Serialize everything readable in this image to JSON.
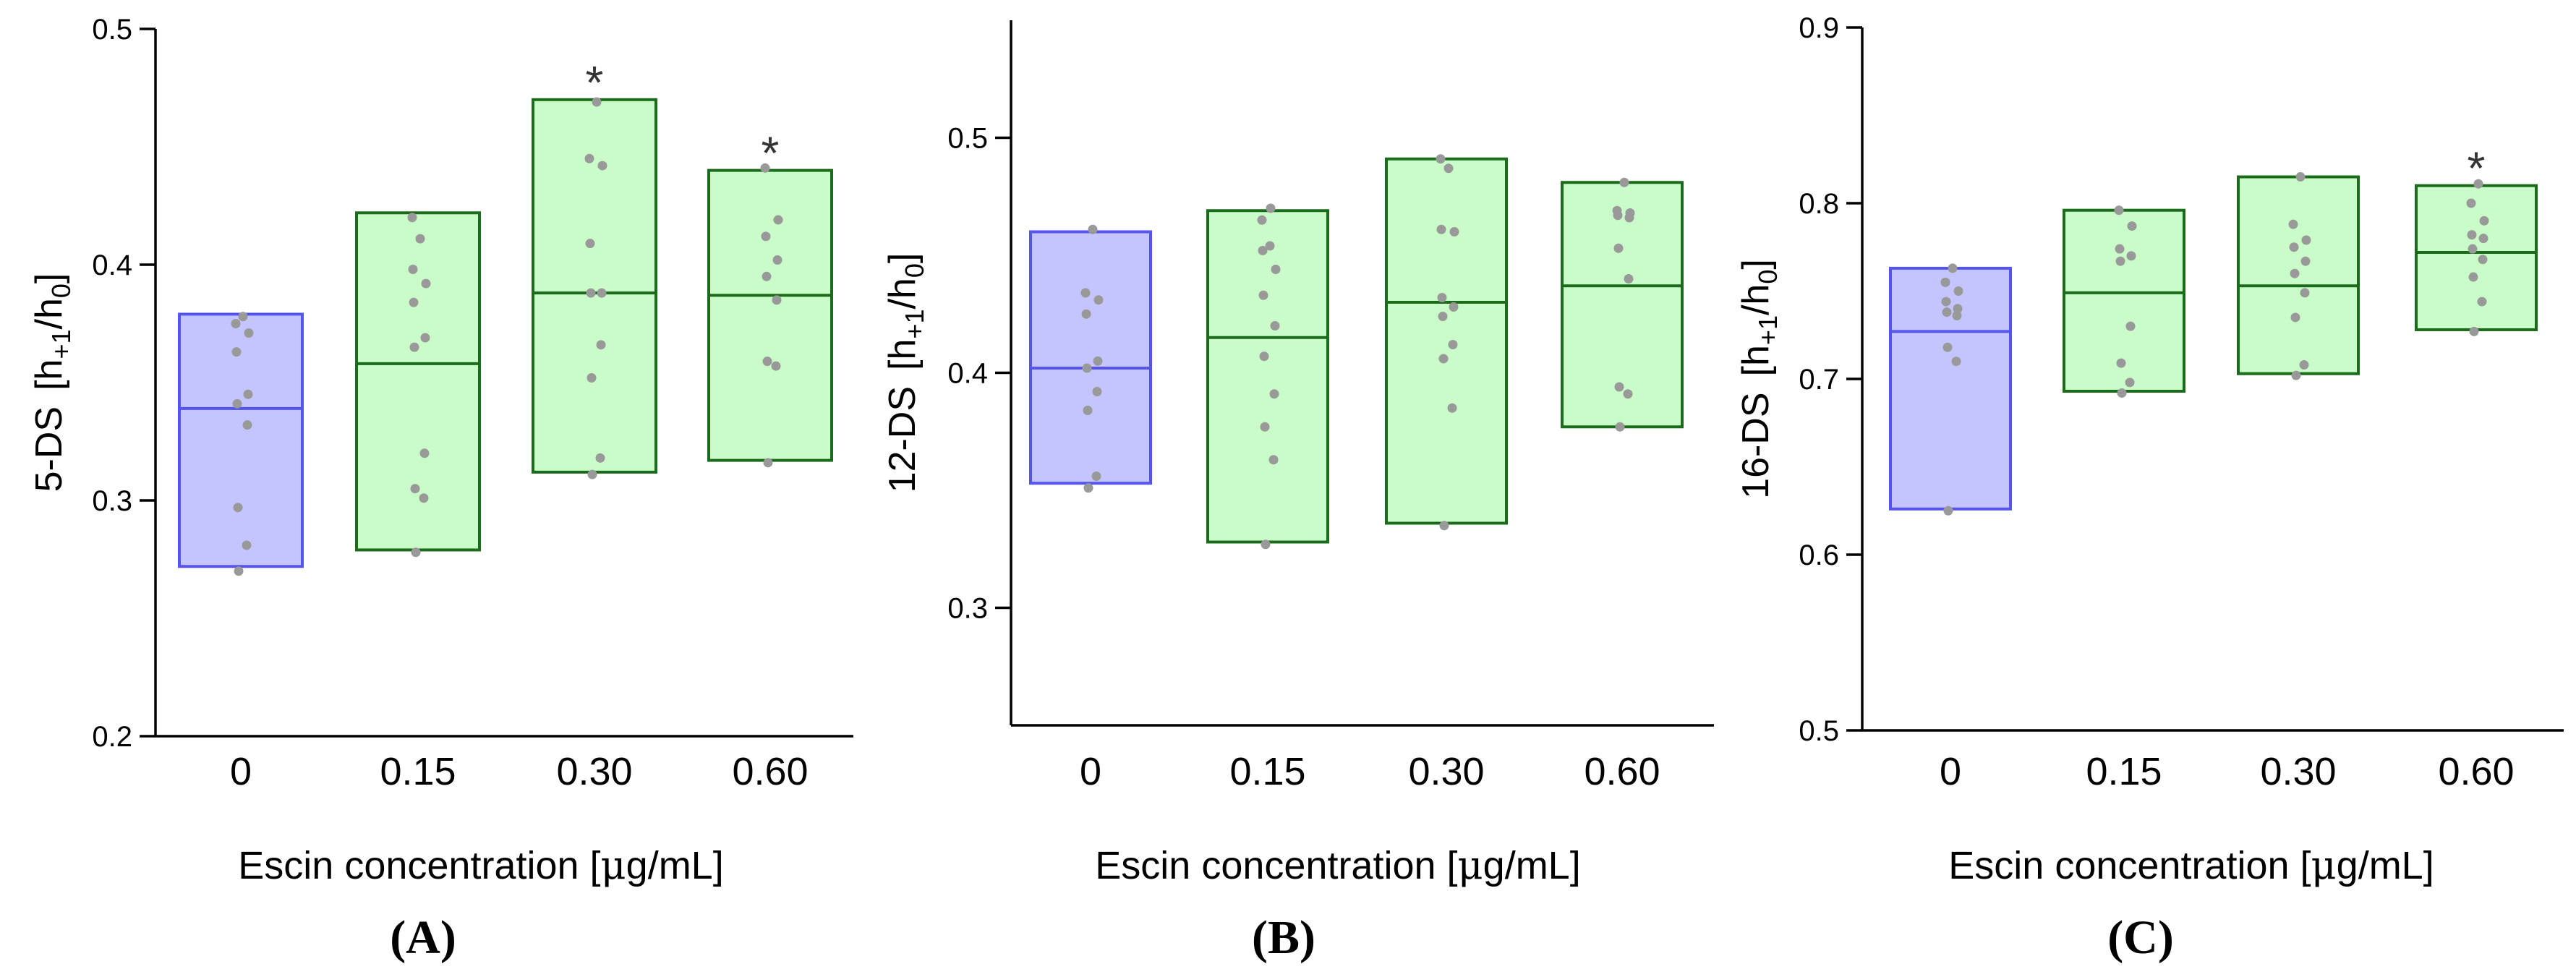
{
  "colors": {
    "control_fill": "#c4c4ff",
    "control_stroke": "#5555ee",
    "treated_fill": "#c9fcc9",
    "treated_stroke": "#1a6b1a",
    "point": "#999999"
  },
  "chart_data": [
    {
      "type": "box",
      "panel_label": "(A)",
      "ylabel": "5-DS   [h+1/h0]",
      "ylabel_prefix": "5-DS",
      "ylabel_h": "h",
      "ylabel_sub1": "+1",
      "ylabel_slash": "/h",
      "ylabel_sub2": "0",
      "xlabel_pre": "Escin concentration [",
      "xlabel_mu": "μ",
      "xlabel_post": "g/mL]",
      "ylim": [
        0.2,
        0.5
      ],
      "yticks": [
        "0.2",
        "0.3",
        "0.4",
        "0.5"
      ],
      "yticks_values": [
        0.2,
        0.3,
        0.4,
        0.5
      ],
      "categories": [
        "0",
        "0.15",
        "0.30",
        "0.60"
      ],
      "boxes": [
        {
          "low": 0.272,
          "high": 0.379,
          "median": 0.339,
          "control": true,
          "star": "",
          "points": [
            0.27,
            0.281,
            0.297,
            0.332,
            0.341,
            0.345,
            0.363,
            0.371,
            0.375,
            0.378
          ]
        },
        {
          "low": 0.279,
          "high": 0.422,
          "median": 0.358,
          "control": false,
          "star": "",
          "points": [
            0.278,
            0.301,
            0.305,
            0.32,
            0.365,
            0.369,
            0.384,
            0.392,
            0.398,
            0.411,
            0.42
          ]
        },
        {
          "low": 0.312,
          "high": 0.47,
          "median": 0.388,
          "control": false,
          "star": "*",
          "points": [
            0.311,
            0.318,
            0.352,
            0.366,
            0.388,
            0.388,
            0.409,
            0.442,
            0.445,
            0.469
          ]
        },
        {
          "low": 0.317,
          "high": 0.44,
          "median": 0.387,
          "control": false,
          "star": "*",
          "points": [
            0.316,
            0.357,
            0.359,
            0.385,
            0.395,
            0.402,
            0.412,
            0.419,
            0.441
          ]
        }
      ]
    },
    {
      "type": "box",
      "panel_label": "(B)",
      "ylabel": "12-DS   [h+1/h0]",
      "ylabel_prefix": "12-DS",
      "ylabel_h": "h",
      "ylabel_sub1": "+1",
      "ylabel_slash": "/h",
      "ylabel_sub2": "0",
      "xlabel_pre": "Escin concentration [",
      "xlabel_mu": "μ",
      "xlabel_post": "g/mL]",
      "ylim": [
        0.25,
        0.55
      ],
      "yticks": [
        "0.3",
        "0.4",
        "0.5"
      ],
      "yticks_values": [
        0.3,
        0.4,
        0.5
      ],
      "categories": [
        "0",
        "0.15",
        "0.30",
        "0.60"
      ],
      "boxes": [
        {
          "low": 0.353,
          "high": 0.46,
          "median": 0.402,
          "control": true,
          "star": "",
          "points": [
            0.351,
            0.356,
            0.384,
            0.392,
            0.402,
            0.405,
            0.425,
            0.431,
            0.434,
            0.461
          ]
        },
        {
          "low": 0.328,
          "high": 0.469,
          "median": 0.415,
          "control": false,
          "star": "",
          "points": [
            0.327,
            0.363,
            0.377,
            0.391,
            0.407,
            0.42,
            0.433,
            0.444,
            0.452,
            0.454,
            0.465,
            0.47
          ]
        },
        {
          "low": 0.336,
          "high": 0.491,
          "median": 0.43,
          "control": false,
          "star": "",
          "points": [
            0.335,
            0.385,
            0.406,
            0.412,
            0.424,
            0.428,
            0.432,
            0.46,
            0.461,
            0.487,
            0.491
          ]
        },
        {
          "low": 0.377,
          "high": 0.481,
          "median": 0.437,
          "control": false,
          "star": "",
          "points": [
            0.377,
            0.391,
            0.394,
            0.44,
            0.453,
            0.466,
            0.467,
            0.468,
            0.469,
            0.481
          ]
        }
      ]
    },
    {
      "type": "box",
      "panel_label": "(C)",
      "ylabel": "16-DS   [h+1/h0]",
      "ylabel_prefix": "16-DS",
      "ylabel_h": "h",
      "ylabel_sub1": "+1",
      "ylabel_slash": "/h",
      "ylabel_sub2": "0",
      "xlabel_pre": "Escin concentration [",
      "xlabel_mu": "μ",
      "xlabel_post": "g/mL]",
      "ylim": [
        0.5,
        0.9
      ],
      "yticks": [
        "0.5",
        "0.6",
        "0.7",
        "0.8",
        "0.9"
      ],
      "yticks_values": [
        0.5,
        0.6,
        0.7,
        0.8,
        0.9
      ],
      "categories": [
        "0",
        "0.15",
        "0.30",
        "0.60"
      ],
      "boxes": [
        {
          "low": 0.626,
          "high": 0.763,
          "median": 0.727,
          "control": true,
          "star": "",
          "points": [
            0.625,
            0.71,
            0.718,
            0.736,
            0.738,
            0.74,
            0.744,
            0.75,
            0.755,
            0.763
          ]
        },
        {
          "low": 0.693,
          "high": 0.796,
          "median": 0.749,
          "control": false,
          "star": "",
          "points": [
            0.692,
            0.698,
            0.709,
            0.73,
            0.767,
            0.77,
            0.774,
            0.787,
            0.796
          ]
        },
        {
          "low": 0.703,
          "high": 0.815,
          "median": 0.753,
          "control": false,
          "star": "",
          "points": [
            0.702,
            0.708,
            0.735,
            0.749,
            0.76,
            0.767,
            0.775,
            0.779,
            0.788,
            0.815
          ]
        },
        {
          "low": 0.728,
          "high": 0.81,
          "median": 0.772,
          "control": false,
          "star": "*",
          "points": [
            0.727,
            0.744,
            0.758,
            0.768,
            0.774,
            0.78,
            0.782,
            0.79,
            0.8,
            0.811
          ]
        }
      ]
    }
  ]
}
